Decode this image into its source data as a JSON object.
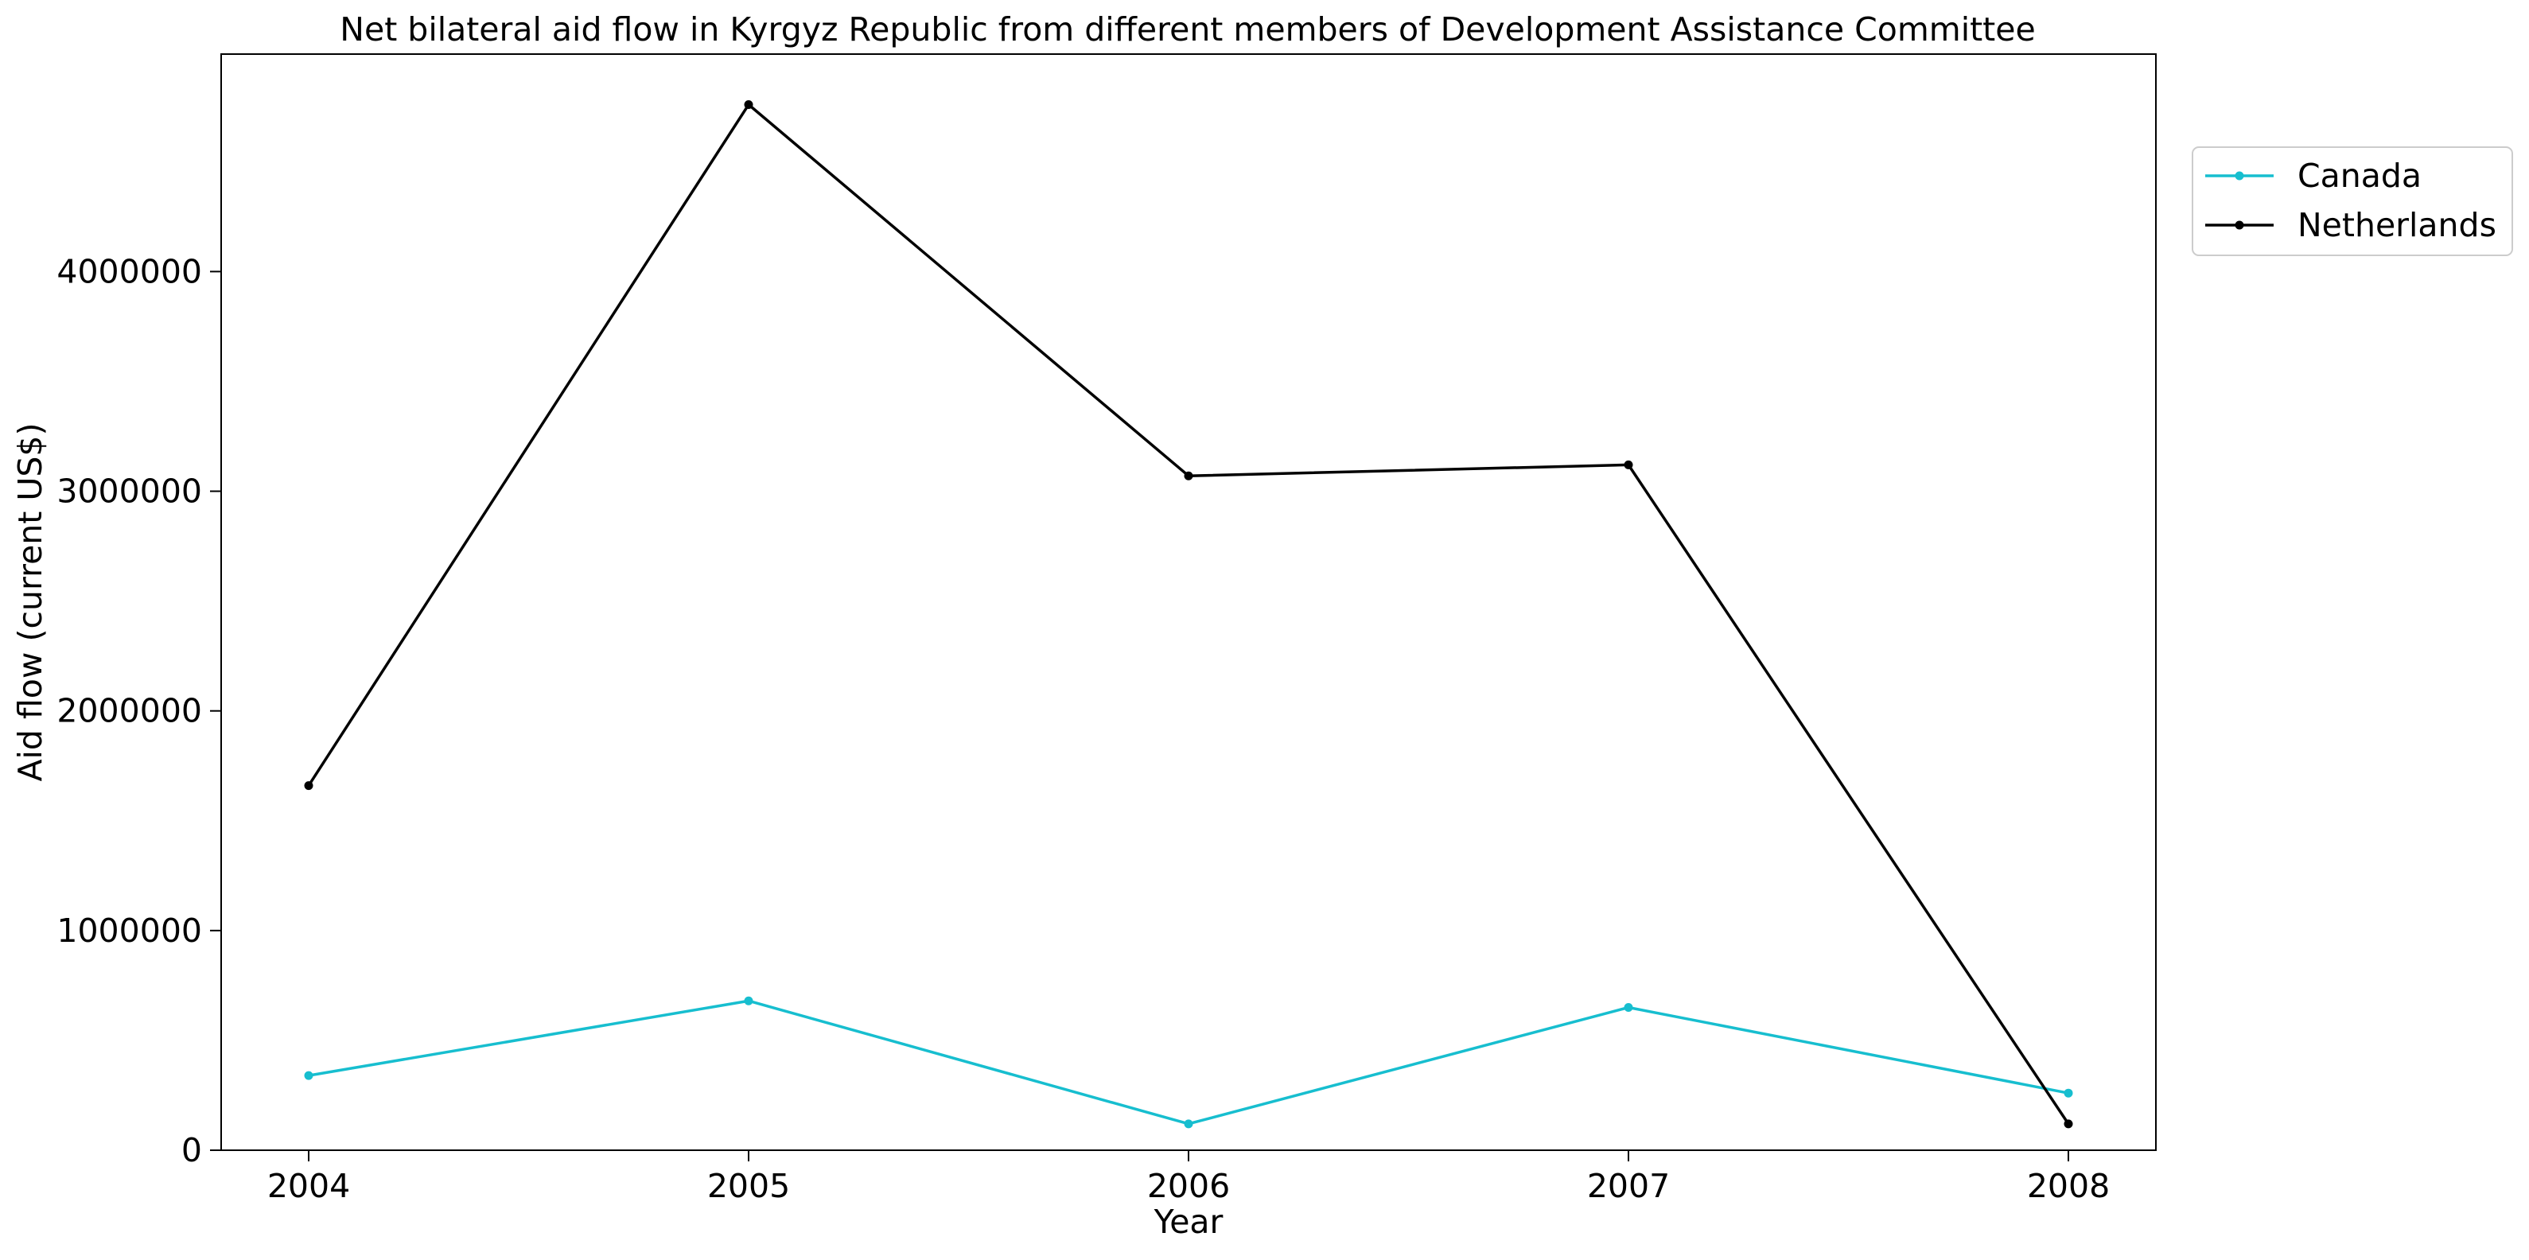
{
  "chart_data": {
    "type": "line",
    "title": "Net bilateral aid flow in Kyrgyz Republic from different members of Development Assistance Committee",
    "xlabel": "Year",
    "ylabel": "Aid flow (current US$)",
    "x": [
      2004,
      2005,
      2006,
      2007,
      2008
    ],
    "x_tick_labels": [
      "2004",
      "2005",
      "2006",
      "2007",
      "2008"
    ],
    "y_ticks": [
      0,
      1000000,
      2000000,
      3000000,
      4000000
    ],
    "y_tick_labels": [
      "0",
      "1000000",
      "2000000",
      "3000000",
      "4000000"
    ],
    "ylim": [
      0,
      4990000
    ],
    "grid": false,
    "legend_position": "outside-top-right",
    "series": [
      {
        "name": "Canada",
        "color": "#17becf",
        "values": [
          340000,
          680000,
          120000,
          650000,
          260000
        ]
      },
      {
        "name": "Netherlands",
        "color": "#000000",
        "values": [
          1660000,
          4760000,
          3070000,
          3120000,
          120000
        ]
      }
    ]
  }
}
